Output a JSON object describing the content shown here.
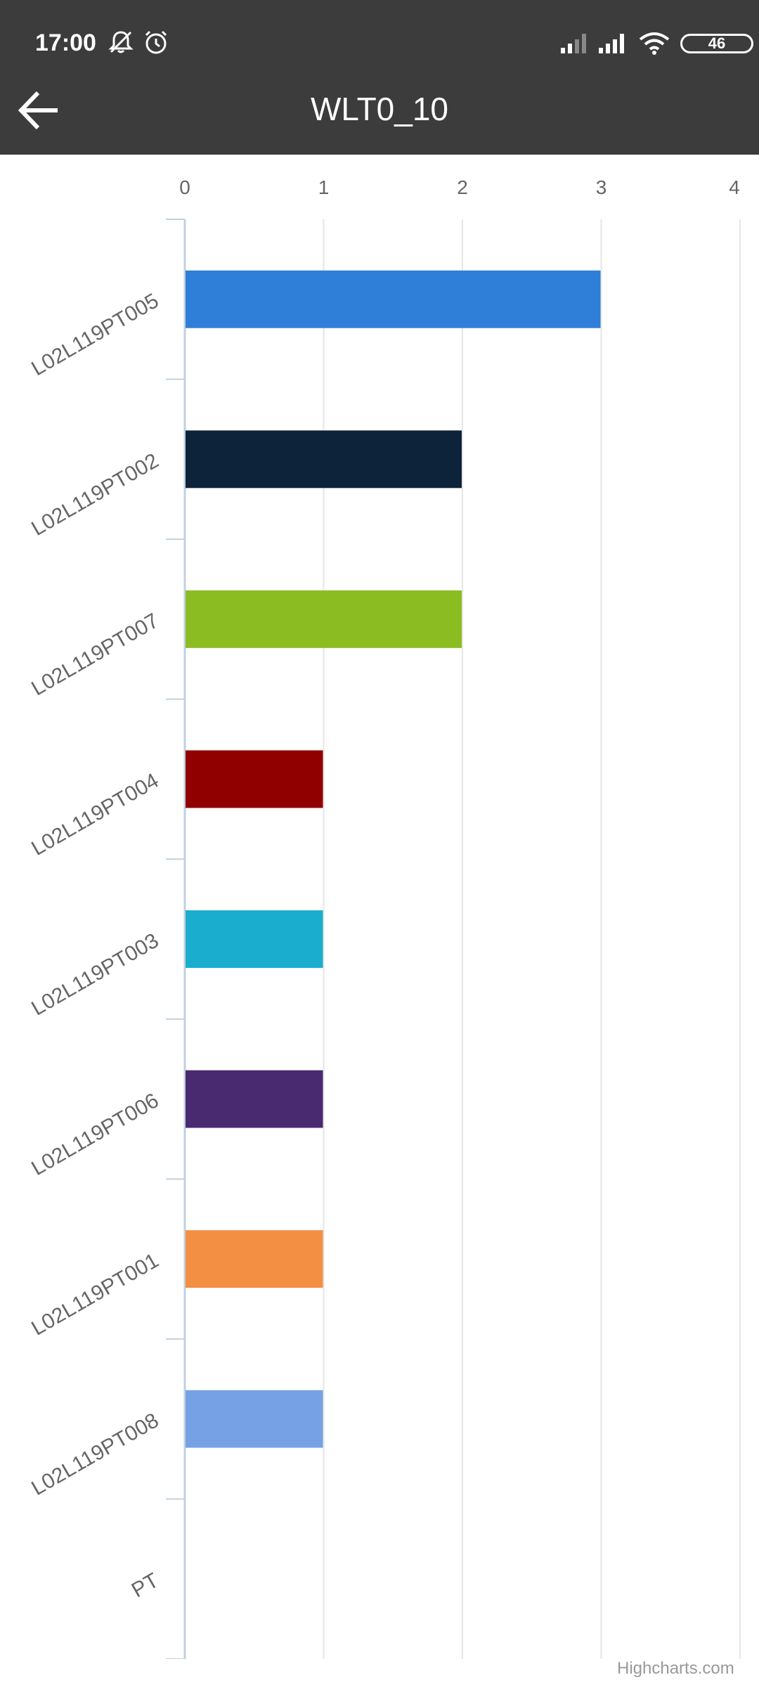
{
  "status_bar": {
    "time": "17:00",
    "icons": [
      "bell-off-icon",
      "alarm-icon",
      "signal-icon",
      "signal-icon",
      "wifi-icon"
    ],
    "battery": "46"
  },
  "header": {
    "title": "WLT0_10",
    "back_icon": "arrow-left-icon"
  },
  "chart_data": {
    "type": "bar",
    "orientation": "horizontal",
    "categories": [
      "L02L119PT005",
      "L02L119PT002",
      "L02L119PT007",
      "L02L119PT004",
      "L02L119PT003",
      "L02L119PT006",
      "L02L119PT001",
      "L02L119PT008",
      "PT"
    ],
    "values": [
      3,
      2,
      2,
      1,
      1,
      1,
      1,
      1,
      0
    ],
    "colors": [
      "#2f7ed8",
      "#0d233a",
      "#8bbc21",
      "#910000",
      "#1aadce",
      "#492970",
      "#f28f43",
      "#77a1e5",
      "#c42525"
    ],
    "xaxis_ticks": [
      "0",
      "1",
      "2",
      "3",
      "4"
    ],
    "xlim": [
      0,
      4
    ],
    "grid": true,
    "credits": "Highcharts.com"
  }
}
